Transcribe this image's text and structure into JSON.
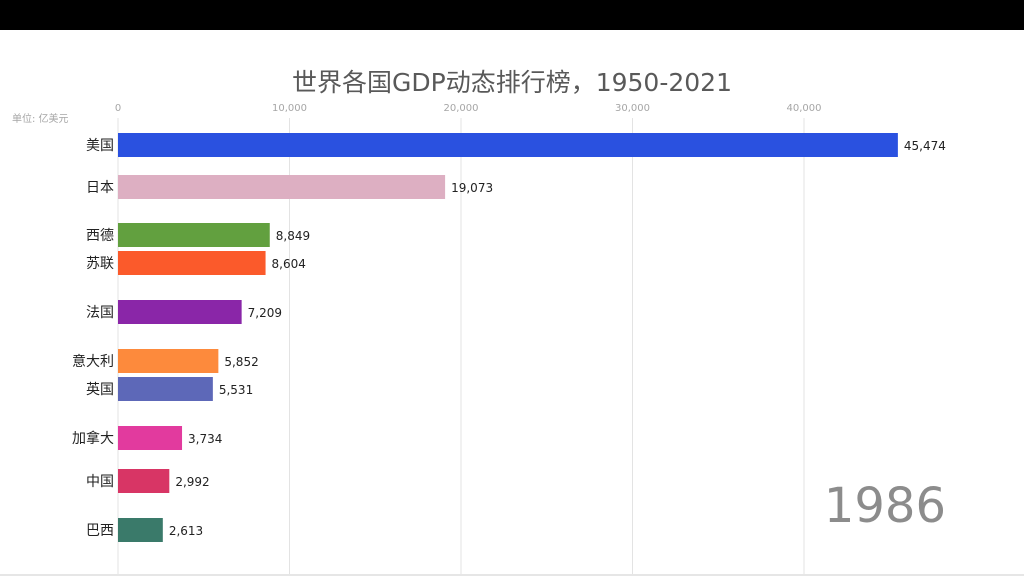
{
  "page": {
    "title": "世界各国GDP动态排行榜，1950-2021",
    "unit_label": "单位: 亿美元",
    "year": "1986"
  },
  "colors": {
    "frame_background": "#ffffff",
    "letterbox": "#000000",
    "grid": "#e3e3e3",
    "axis_text": "#a6a6a6",
    "label_text": "#222222"
  },
  "chart_data": {
    "type": "bar",
    "orientation": "horizontal",
    "title": "世界各国GDP动态排行榜，1950-2021",
    "xlabel": "",
    "ylabel": "",
    "unit": "单位: 亿美元",
    "xlim": [
      0,
      45474
    ],
    "x_ticks": [
      0,
      10000,
      20000,
      30000,
      40000
    ],
    "x_tick_labels": [
      "0",
      "10,000",
      "20,000",
      "30,000",
      "40,000"
    ],
    "grid": true,
    "categories": [
      "美国",
      "日本",
      "西德",
      "苏联",
      "法国",
      "意大利",
      "英国",
      "加拿大",
      "中国",
      "巴西"
    ],
    "values": [
      45474,
      19073,
      8849,
      8604,
      7209,
      5852,
      5531,
      3734,
      2992,
      2613
    ],
    "value_labels": [
      "45,474",
      "19,073",
      "8,849",
      "8,604",
      "7,209",
      "5,852",
      "5,531",
      "3,734",
      "2,992",
      "2,613"
    ],
    "bar_colors": [
      "#2a51e0",
      "#ddafc2",
      "#62a03f",
      "#fb5a2b",
      "#8a26a8",
      "#fd8a3c",
      "#5d68b8",
      "#e23a9e",
      "#d83565",
      "#3a7a6a"
    ]
  }
}
